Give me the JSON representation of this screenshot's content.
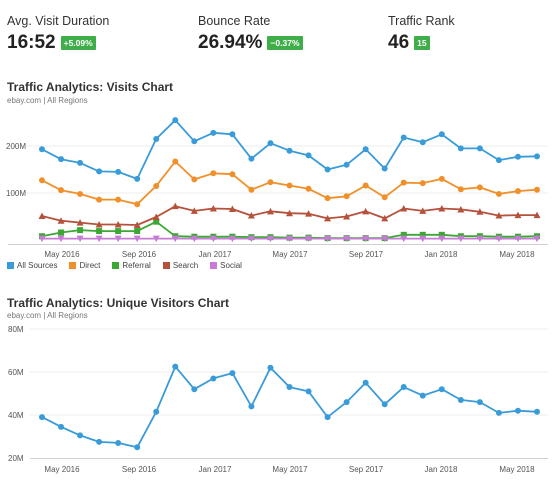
{
  "metrics": [
    {
      "label": "Avg. Visit Duration",
      "value": "16:52",
      "badge": "+5.09%"
    },
    {
      "label": "Bounce Rate",
      "value": "26.94%",
      "badge": "−0.37%"
    },
    {
      "label": "Traffic Rank",
      "value": "46",
      "badge": "15"
    }
  ],
  "visits_chart": {
    "title": "Traffic Analytics: Visits Chart",
    "subtitle": "ebay.com | All Regions",
    "y_tick_labels": [
      "200M",
      "100M"
    ],
    "x_tick_labels": [
      "May 2016",
      "Sep 2016",
      "Jan 2017",
      "May 2017",
      "Sep 2017",
      "Jan 2018",
      "May 2018"
    ],
    "legend": [
      "All Sources",
      "Direct",
      "Referral",
      "Search",
      "Social"
    ]
  },
  "unique_chart": {
    "title": "Traffic Analytics: Unique Visitors Chart",
    "subtitle": "ebay.com | All Regions",
    "y_tick_labels": [
      "80M",
      "60M",
      "40M",
      "20M"
    ],
    "x_tick_labels": [
      "May 2016",
      "Sep 2016",
      "Jan 2017",
      "May 2017",
      "Sep 2017",
      "Jan 2018",
      "May 2018"
    ]
  },
  "colors": {
    "all_sources": "#3a9bd9",
    "direct": "#f0902a",
    "referral": "#3aa833",
    "search": "#b5523b",
    "social": "#c77bd6"
  },
  "chart_data": [
    {
      "type": "line",
      "x": [
        "Apr 2016",
        "May 2016",
        "Jun 2016",
        "Jul 2016",
        "Aug 2016",
        "Sep 2016",
        "Oct 2016",
        "Nov 2016",
        "Dec 2016",
        "Jan 2017",
        "Feb 2017",
        "Mar 2017",
        "Apr 2017",
        "May 2017",
        "Jun 2017",
        "Jul 2017",
        "Aug 2017",
        "Sep 2017",
        "Oct 2017",
        "Nov 2017",
        "Dec 2017",
        "Jan 2018",
        "Feb 2018",
        "Mar 2018",
        "Apr 2018",
        "May 2018",
        "Jun 2018"
      ],
      "ylim": [
        0,
        250
      ],
      "series": [
        {
          "name": "All Sources",
          "color_key": "all_sources",
          "marker": "circle",
          "values": [
            193,
            172,
            164,
            146,
            145,
            130,
            215,
            255,
            210,
            228,
            225,
            173,
            206,
            190,
            180,
            150,
            160,
            193,
            152,
            218,
            208,
            225,
            195,
            195,
            170,
            177,
            178
          ]
        },
        {
          "name": "Direct",
          "color_key": "direct",
          "marker": "circle",
          "values": [
            127,
            106,
            98,
            86,
            86,
            76,
            115,
            167,
            129,
            142,
            140,
            107,
            123,
            116,
            109,
            89,
            93,
            116,
            91,
            122,
            121,
            130,
            108,
            112,
            98,
            104,
            107
          ]
        },
        {
          "name": "Referral",
          "color_key": "referral",
          "marker": "square",
          "values": [
            8,
            16,
            21,
            19,
            19,
            19,
            39,
            8,
            7,
            7,
            7,
            6,
            6,
            5,
            5,
            4,
            4,
            4,
            4,
            11,
            11,
            11,
            8,
            8,
            7,
            7,
            8
          ]
        },
        {
          "name": "Search",
          "color_key": "search",
          "marker": "triangle",
          "values": [
            51,
            41,
            37,
            33,
            33,
            32,
            49,
            72,
            62,
            67,
            66,
            52,
            61,
            57,
            56,
            46,
            50,
            61,
            46,
            67,
            62,
            67,
            65,
            60,
            52,
            53,
            53
          ]
        },
        {
          "name": "Social",
          "color_key": "social",
          "marker": "triangle-down",
          "values": [
            3,
            3,
            3,
            3,
            3,
            3,
            3,
            3,
            3,
            3,
            3,
            3,
            3,
            3,
            3,
            3,
            3,
            3,
            3,
            3,
            3,
            3,
            3,
            3,
            3,
            3,
            3
          ]
        }
      ]
    },
    {
      "type": "line",
      "x": [
        "Apr 2016",
        "May 2016",
        "Jun 2016",
        "Jul 2016",
        "Aug 2016",
        "Sep 2016",
        "Oct 2016",
        "Nov 2016",
        "Dec 2016",
        "Jan 2017",
        "Feb 2017",
        "Mar 2017",
        "Apr 2017",
        "May 2017",
        "Jun 2017",
        "Jul 2017",
        "Aug 2017",
        "Sep 2017",
        "Oct 2017",
        "Nov 2017",
        "Dec 2017",
        "Jan 2018",
        "Feb 2018",
        "Mar 2018",
        "Apr 2018",
        "May 2018",
        "Jun 2018"
      ],
      "ylim": [
        20,
        80
      ],
      "y_unit": "M",
      "series": [
        {
          "name": "All Sources",
          "color_key": "all_sources",
          "marker": "circle",
          "values": [
            39,
            34.5,
            30.5,
            27.5,
            27,
            25,
            41.5,
            62.5,
            52,
            57,
            59.5,
            44,
            62,
            53,
            51,
            39,
            46,
            55,
            45,
            53,
            49,
            52,
            47,
            46,
            41,
            42,
            41.5
          ]
        }
      ]
    }
  ]
}
